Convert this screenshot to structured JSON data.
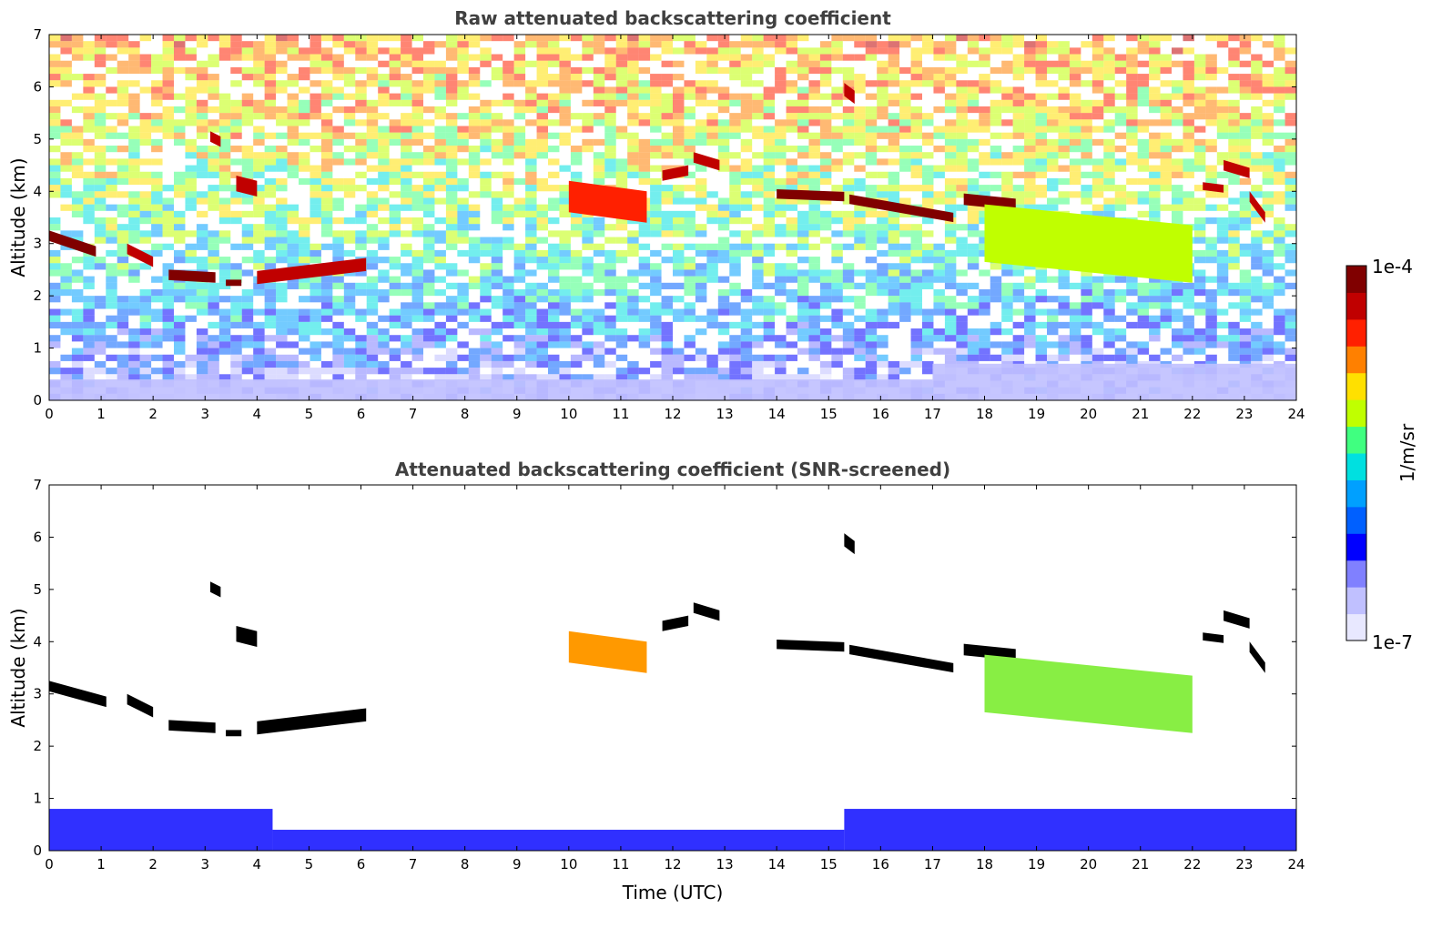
{
  "chart_data": [
    {
      "type": "heatmap",
      "title": "Raw attenuated backscattering coefficient",
      "xlabel": "",
      "ylabel": "Altitude (km)",
      "xlim": [
        0,
        24
      ],
      "ylim": [
        0,
        7
      ],
      "xticks": [
        "0",
        "1",
        "2",
        "3",
        "4",
        "5",
        "6",
        "7",
        "8",
        "9",
        "10",
        "11",
        "12",
        "13",
        "14",
        "15",
        "16",
        "17",
        "18",
        "19",
        "20",
        "21",
        "22",
        "23",
        "24"
      ],
      "yticks": [
        "0",
        "1",
        "2",
        "3",
        "4",
        "5",
        "6",
        "7"
      ],
      "screened": false,
      "noise_profile": {
        "altitude_km": [
          0,
          0.3,
          0.8,
          1.5,
          2.5,
          3.5,
          4.5,
          5.5,
          7
        ],
        "log_value_level": [
          0.1,
          0.15,
          0.22,
          0.35,
          0.45,
          0.55,
          0.62,
          0.7,
          0.75
        ]
      },
      "cloud_layers": [
        {
          "t_start": 0.0,
          "t_end": 0.9,
          "alt_start": 3.15,
          "alt_end": 2.85,
          "thickness_km": 0.2,
          "level": 0.97
        },
        {
          "t_start": 1.5,
          "t_end": 2.0,
          "alt_start": 2.9,
          "alt_end": 2.65,
          "thickness_km": 0.2,
          "level": 0.95
        },
        {
          "t_start": 2.3,
          "t_end": 3.2,
          "alt_start": 2.4,
          "alt_end": 2.35,
          "thickness_km": 0.2,
          "level": 0.97
        },
        {
          "t_start": 3.4,
          "t_end": 3.7,
          "alt_start": 2.25,
          "alt_end": 2.25,
          "thickness_km": 0.12,
          "level": 0.97
        },
        {
          "t_start": 4.0,
          "t_end": 6.1,
          "alt_start": 2.35,
          "alt_end": 2.6,
          "thickness_km": 0.25,
          "level": 0.95
        },
        {
          "t_start": 3.1,
          "t_end": 3.3,
          "alt_start": 5.05,
          "alt_end": 4.95,
          "thickness_km": 0.2,
          "level": 0.93
        },
        {
          "t_start": 3.6,
          "t_end": 4.0,
          "alt_start": 4.15,
          "alt_end": 4.05,
          "thickness_km": 0.3,
          "level": 0.93
        },
        {
          "t_start": 10.0,
          "t_end": 11.5,
          "alt_start": 3.9,
          "alt_end": 3.7,
          "thickness_km": 0.6,
          "level": 0.85
        },
        {
          "t_start": 11.8,
          "t_end": 12.3,
          "alt_start": 4.3,
          "alt_end": 4.4,
          "thickness_km": 0.2,
          "level": 0.9
        },
        {
          "t_start": 12.4,
          "t_end": 12.9,
          "alt_start": 4.65,
          "alt_end": 4.5,
          "thickness_km": 0.2,
          "level": 0.93
        },
        {
          "t_start": 14.0,
          "t_end": 15.3,
          "alt_start": 3.95,
          "alt_end": 3.9,
          "thickness_km": 0.18,
          "level": 0.98
        },
        {
          "t_start": 15.4,
          "t_end": 17.4,
          "alt_start": 3.85,
          "alt_end": 3.5,
          "thickness_km": 0.18,
          "level": 0.98
        },
        {
          "t_start": 15.3,
          "t_end": 15.5,
          "alt_start": 5.95,
          "alt_end": 5.8,
          "thickness_km": 0.25,
          "level": 0.92
        },
        {
          "t_start": 17.6,
          "t_end": 18.6,
          "alt_start": 3.85,
          "alt_end": 3.75,
          "thickness_km": 0.22,
          "level": 0.97
        },
        {
          "t_start": 18.0,
          "t_end": 22.0,
          "alt_start": 3.2,
          "alt_end": 2.8,
          "thickness_km": 1.1,
          "level": 0.62
        },
        {
          "t_start": 22.2,
          "t_end": 22.6,
          "alt_start": 4.1,
          "alt_end": 4.05,
          "thickness_km": 0.15,
          "level": 0.95
        },
        {
          "t_start": 22.6,
          "t_end": 23.1,
          "alt_start": 4.5,
          "alt_end": 4.35,
          "thickness_km": 0.2,
          "level": 0.95
        },
        {
          "t_start": 23.1,
          "t_end": 23.4,
          "alt_start": 3.9,
          "alt_end": 3.5,
          "thickness_km": 0.2,
          "level": 0.92
        }
      ],
      "boundary_layer": [
        {
          "t_start": 0,
          "t_end": 17,
          "top_km": 0.4,
          "level": 0.1
        },
        {
          "t_start": 17,
          "t_end": 24,
          "top_km": 0.7,
          "level": 0.1
        }
      ]
    },
    {
      "type": "heatmap",
      "title": "Attenuated backscattering coefficient (SNR-screened)",
      "xlabel": "Time (UTC)",
      "ylabel": "Altitude (km)",
      "xlim": [
        0,
        24
      ],
      "ylim": [
        0,
        7
      ],
      "xticks": [
        "0",
        "1",
        "2",
        "3",
        "4",
        "5",
        "6",
        "7",
        "8",
        "9",
        "10",
        "11",
        "12",
        "13",
        "14",
        "15",
        "16",
        "17",
        "18",
        "19",
        "20",
        "21",
        "22",
        "23",
        "24"
      ],
      "yticks": [
        "0",
        "1",
        "2",
        "3",
        "4",
        "5",
        "6",
        "7"
      ],
      "screened": true,
      "cloud_layers": [
        {
          "t_start": 0.0,
          "t_end": 1.1,
          "alt_start": 3.15,
          "alt_end": 2.85,
          "thickness_km": 0.2,
          "color": "#000000"
        },
        {
          "t_start": 1.5,
          "t_end": 2.0,
          "alt_start": 2.9,
          "alt_end": 2.65,
          "thickness_km": 0.2,
          "color": "#000000"
        },
        {
          "t_start": 2.3,
          "t_end": 3.2,
          "alt_start": 2.4,
          "alt_end": 2.35,
          "thickness_km": 0.2,
          "color": "#000000"
        },
        {
          "t_start": 3.4,
          "t_end": 3.7,
          "alt_start": 2.25,
          "alt_end": 2.25,
          "thickness_km": 0.12,
          "color": "#000000"
        },
        {
          "t_start": 4.0,
          "t_end": 6.1,
          "alt_start": 2.35,
          "alt_end": 2.6,
          "thickness_km": 0.25,
          "color": "#000000"
        },
        {
          "t_start": 3.1,
          "t_end": 3.3,
          "alt_start": 5.05,
          "alt_end": 4.95,
          "thickness_km": 0.2,
          "color": "#000000"
        },
        {
          "t_start": 3.6,
          "t_end": 4.0,
          "alt_start": 4.15,
          "alt_end": 4.05,
          "thickness_km": 0.3,
          "color": "#000000"
        },
        {
          "t_start": 10.0,
          "t_end": 11.5,
          "alt_start": 3.9,
          "alt_end": 3.7,
          "thickness_km": 0.6,
          "color": "#ff9900"
        },
        {
          "t_start": 11.8,
          "t_end": 12.3,
          "alt_start": 4.3,
          "alt_end": 4.4,
          "thickness_km": 0.2,
          "color": "#000000"
        },
        {
          "t_start": 12.4,
          "t_end": 12.9,
          "alt_start": 4.65,
          "alt_end": 4.5,
          "thickness_km": 0.2,
          "color": "#000000"
        },
        {
          "t_start": 14.0,
          "t_end": 15.3,
          "alt_start": 3.95,
          "alt_end": 3.9,
          "thickness_km": 0.18,
          "color": "#000000"
        },
        {
          "t_start": 15.4,
          "t_end": 17.4,
          "alt_start": 3.85,
          "alt_end": 3.5,
          "thickness_km": 0.18,
          "color": "#000000"
        },
        {
          "t_start": 15.3,
          "t_end": 15.5,
          "alt_start": 5.95,
          "alt_end": 5.8,
          "thickness_km": 0.25,
          "color": "#000000"
        },
        {
          "t_start": 17.6,
          "t_end": 18.6,
          "alt_start": 3.85,
          "alt_end": 3.75,
          "thickness_km": 0.22,
          "color": "#000000"
        },
        {
          "t_start": 18.0,
          "t_end": 22.0,
          "alt_start": 3.2,
          "alt_end": 2.8,
          "thickness_km": 1.1,
          "color": "#88ee44"
        },
        {
          "t_start": 22.2,
          "t_end": 22.6,
          "alt_start": 4.1,
          "alt_end": 4.05,
          "thickness_km": 0.15,
          "color": "#000000"
        },
        {
          "t_start": 22.6,
          "t_end": 23.1,
          "alt_start": 4.5,
          "alt_end": 4.35,
          "thickness_km": 0.2,
          "color": "#000000"
        },
        {
          "t_start": 23.1,
          "t_end": 23.4,
          "alt_start": 3.9,
          "alt_end": 3.5,
          "thickness_km": 0.2,
          "color": "#000000"
        }
      ],
      "boundary_layer": [
        {
          "t_start": 0,
          "t_end": 4.3,
          "top_km": 0.8,
          "color": "#1a1aff"
        },
        {
          "t_start": 4.3,
          "t_end": 15.3,
          "top_km": 0.4,
          "color": "#1a1aff"
        },
        {
          "t_start": 15.3,
          "t_end": 24,
          "top_km": 0.8,
          "color": "#1a1aff"
        }
      ]
    }
  ],
  "colorbar": {
    "label": "1/m/sr",
    "max_label": "1e-4",
    "min_label": "1e-7",
    "colors": [
      "#e8e8ff",
      "#c0c0ff",
      "#8080ff",
      "#0000ff",
      "#0060ff",
      "#00a0ff",
      "#00e0e0",
      "#40ff80",
      "#c0ff00",
      "#ffe000",
      "#ff8000",
      "#ff2000",
      "#c00000",
      "#800000"
    ]
  }
}
